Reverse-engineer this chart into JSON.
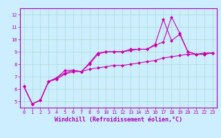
{
  "title": "",
  "xlabel": "Windchill (Refroidissement éolien,°C)",
  "ylabel": "",
  "bg_color": "#cceeff",
  "line_color": "#cc00aa",
  "xlim": [
    -0.5,
    23.5
  ],
  "ylim": [
    4.5,
    12.5
  ],
  "xticks": [
    0,
    1,
    2,
    3,
    4,
    5,
    6,
    7,
    8,
    9,
    10,
    11,
    12,
    13,
    14,
    15,
    16,
    17,
    18,
    19,
    20,
    21,
    22,
    23
  ],
  "yticks": [
    5,
    6,
    7,
    8,
    9,
    10,
    11,
    12
  ],
  "series": [
    [
      6.2,
      4.8,
      5.1,
      6.6,
      6.9,
      7.5,
      7.5,
      7.4,
      8.1,
      8.9,
      9.0,
      9.0,
      9.0,
      9.2,
      9.2,
      9.2,
      9.6,
      11.6,
      9.9,
      10.4,
      9.0,
      8.8,
      8.9,
      8.9
    ],
    [
      6.2,
      4.8,
      5.1,
      6.6,
      6.9,
      7.3,
      7.5,
      7.4,
      8.0,
      8.8,
      9.0,
      9.0,
      9.0,
      9.1,
      9.2,
      9.2,
      9.5,
      9.8,
      11.8,
      10.5,
      9.0,
      8.8,
      8.8,
      8.9
    ],
    [
      6.2,
      4.8,
      5.1,
      6.6,
      6.8,
      7.2,
      7.4,
      7.4,
      7.6,
      7.7,
      7.8,
      7.9,
      7.9,
      8.0,
      8.1,
      8.2,
      8.3,
      8.5,
      8.6,
      8.7,
      8.8,
      8.8,
      8.8,
      8.9
    ]
  ],
  "marker": "D",
  "marker_size": 2,
  "linewidth": 0.8,
  "grid_color": "#aaddcc",
  "font_color": "#aa00aa",
  "tick_font_size": 5,
  "label_font_size": 6,
  "spine_color": "#aa00aa"
}
